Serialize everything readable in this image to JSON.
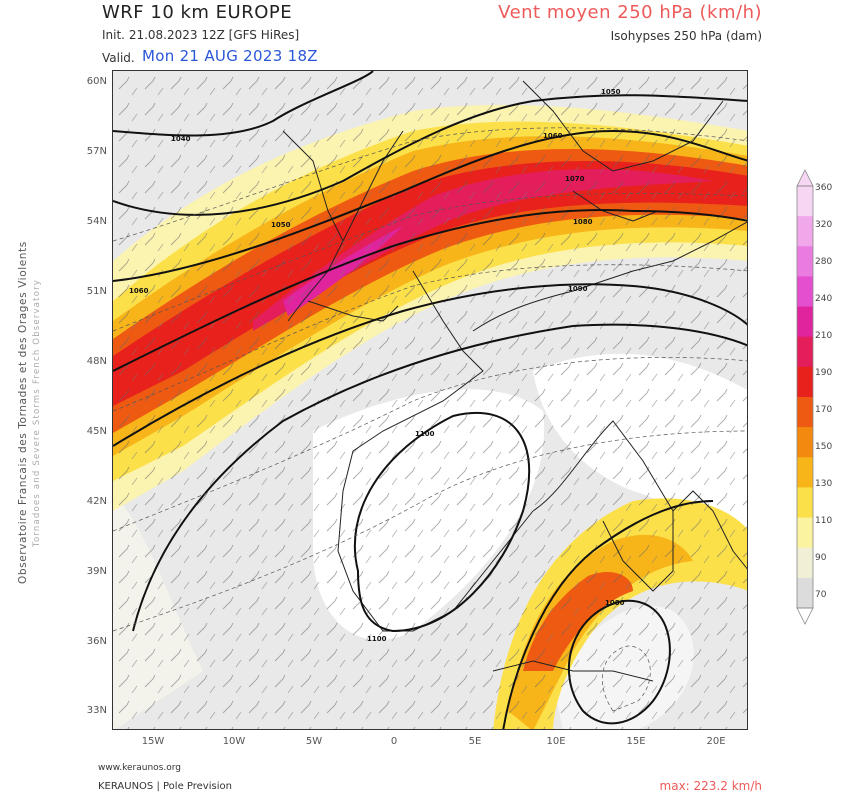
{
  "header": {
    "title": "WRF 10 km EUROPE",
    "product": "Vent moyen 250 hPa (km/h)",
    "init": "Init.  21.08.2023 12Z [GFS HiRes]",
    "isohypses": "Isohypses 250 hPa (dam)",
    "valid_label": "Valid.",
    "valid_date": "Mon 21 AUG 2023 18Z"
  },
  "side_credit": {
    "line1": "Observatoire Francais des Tornades et des Orages Violents",
    "line2": "Tornadoes and Severe Storms French Observatory"
  },
  "map": {
    "lat_labels": [
      "60N",
      "57N",
      "54N",
      "51N",
      "48N",
      "45N",
      "42N",
      "39N",
      "36N",
      "33N"
    ],
    "lon_labels": [
      "15W",
      "10W",
      "5W",
      "0",
      "5E",
      "10E",
      "15E",
      "20E"
    ],
    "contour_labels": [
      "1050",
      "1040",
      "1060",
      "1050",
      "1070",
      "1080",
      "1060",
      "1090",
      "1100",
      "1100",
      "1080"
    ]
  },
  "colorbar": {
    "labels": [
      "360",
      "320",
      "280",
      "240",
      "210",
      "190",
      "170",
      "150",
      "130",
      "110",
      "90",
      "70"
    ],
    "colors": [
      "#f6d6f3",
      "#f0a8ea",
      "#ea7ce0",
      "#e44fcf",
      "#e0249e",
      "#e31e5a",
      "#e8211c",
      "#ee5a12",
      "#f4890f",
      "#f8b51a",
      "#fbe04a",
      "#fcf3a0",
      "#f1f0d6",
      "#dcdcdc"
    ]
  },
  "footer": {
    "site": "www.keraunos.org",
    "brand": "KERAUNOS | Pole Prevision",
    "max": "max: 223.2 km/h"
  }
}
